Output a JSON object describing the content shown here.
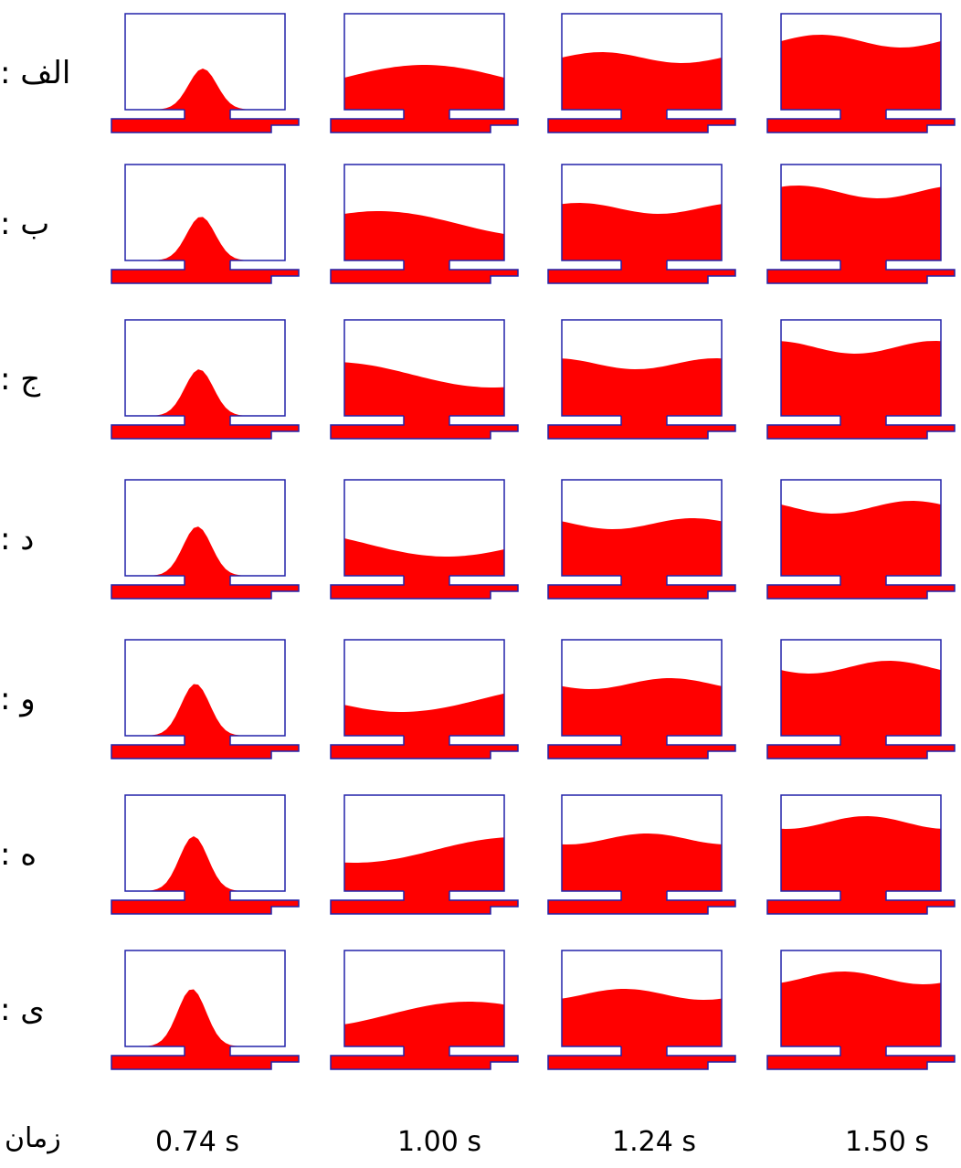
{
  "rows": [
    {
      "label": "الف :"
    },
    {
      "label": "ب :"
    },
    {
      "label": "ج :"
    },
    {
      "label": "د :"
    },
    {
      "label": "و :"
    },
    {
      "label": "ه :"
    },
    {
      "label": "ی :"
    }
  ],
  "times": {
    "label": "زمان",
    "values": [
      "0.74 s",
      "1.00 s",
      "1.24 s",
      "1.50 s"
    ]
  }
}
